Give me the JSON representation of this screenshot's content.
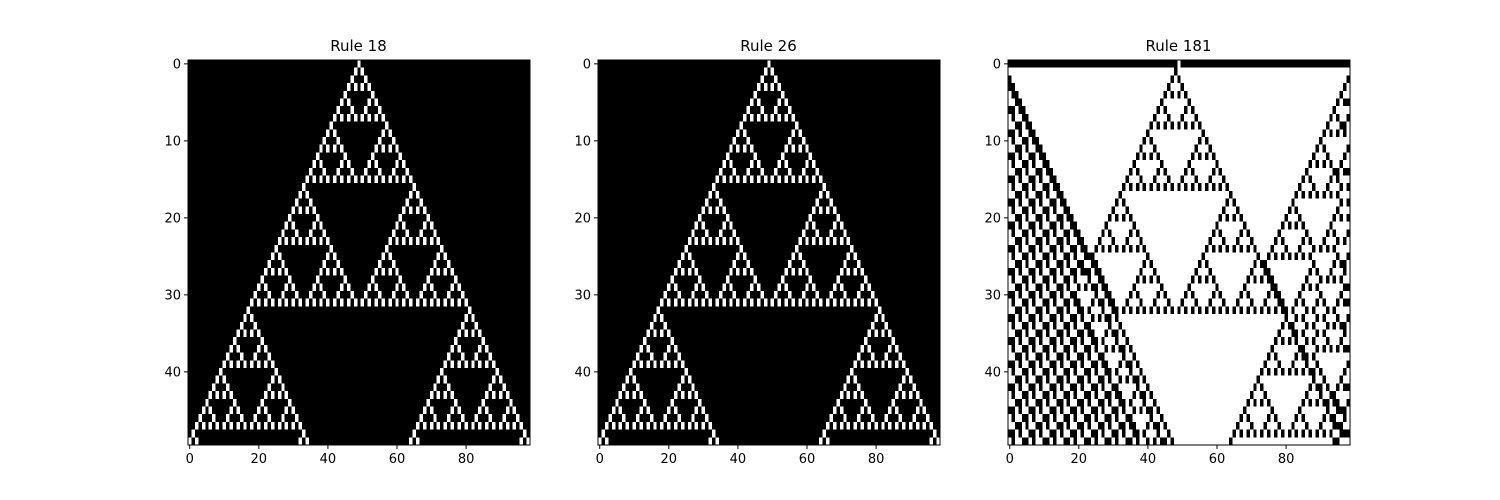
{
  "chart_data": [
    {
      "type": "heatmap",
      "title": "Rule 18",
      "rule": 18,
      "width": 99,
      "height": 50,
      "initial_state": "single live cell at x=49",
      "colormap": "binary",
      "xticks": [
        0,
        20,
        40,
        60,
        80
      ],
      "yticks": [
        0,
        10,
        20,
        30,
        40
      ],
      "xlabel": "",
      "ylabel": ""
    },
    {
      "type": "heatmap",
      "title": "Rule 26",
      "rule": 26,
      "width": 99,
      "height": 50,
      "initial_state": "single live cell at x=49",
      "colormap": "binary",
      "xticks": [
        0,
        20,
        40,
        60,
        80
      ],
      "yticks": [
        0,
        10,
        20,
        30,
        40
      ],
      "xlabel": "",
      "ylabel": ""
    },
    {
      "type": "heatmap",
      "title": "Rule 181",
      "rule": 181,
      "width": 99,
      "height": 50,
      "initial_state": "single live cell at x=49",
      "colormap": "binary",
      "xticks": [
        0,
        20,
        40,
        60,
        80
      ],
      "yticks": [
        0,
        10,
        20,
        30,
        40
      ],
      "xlabel": "",
      "ylabel": ""
    }
  ],
  "colors": {
    "live": "#ffffff",
    "dead": "#000000"
  }
}
